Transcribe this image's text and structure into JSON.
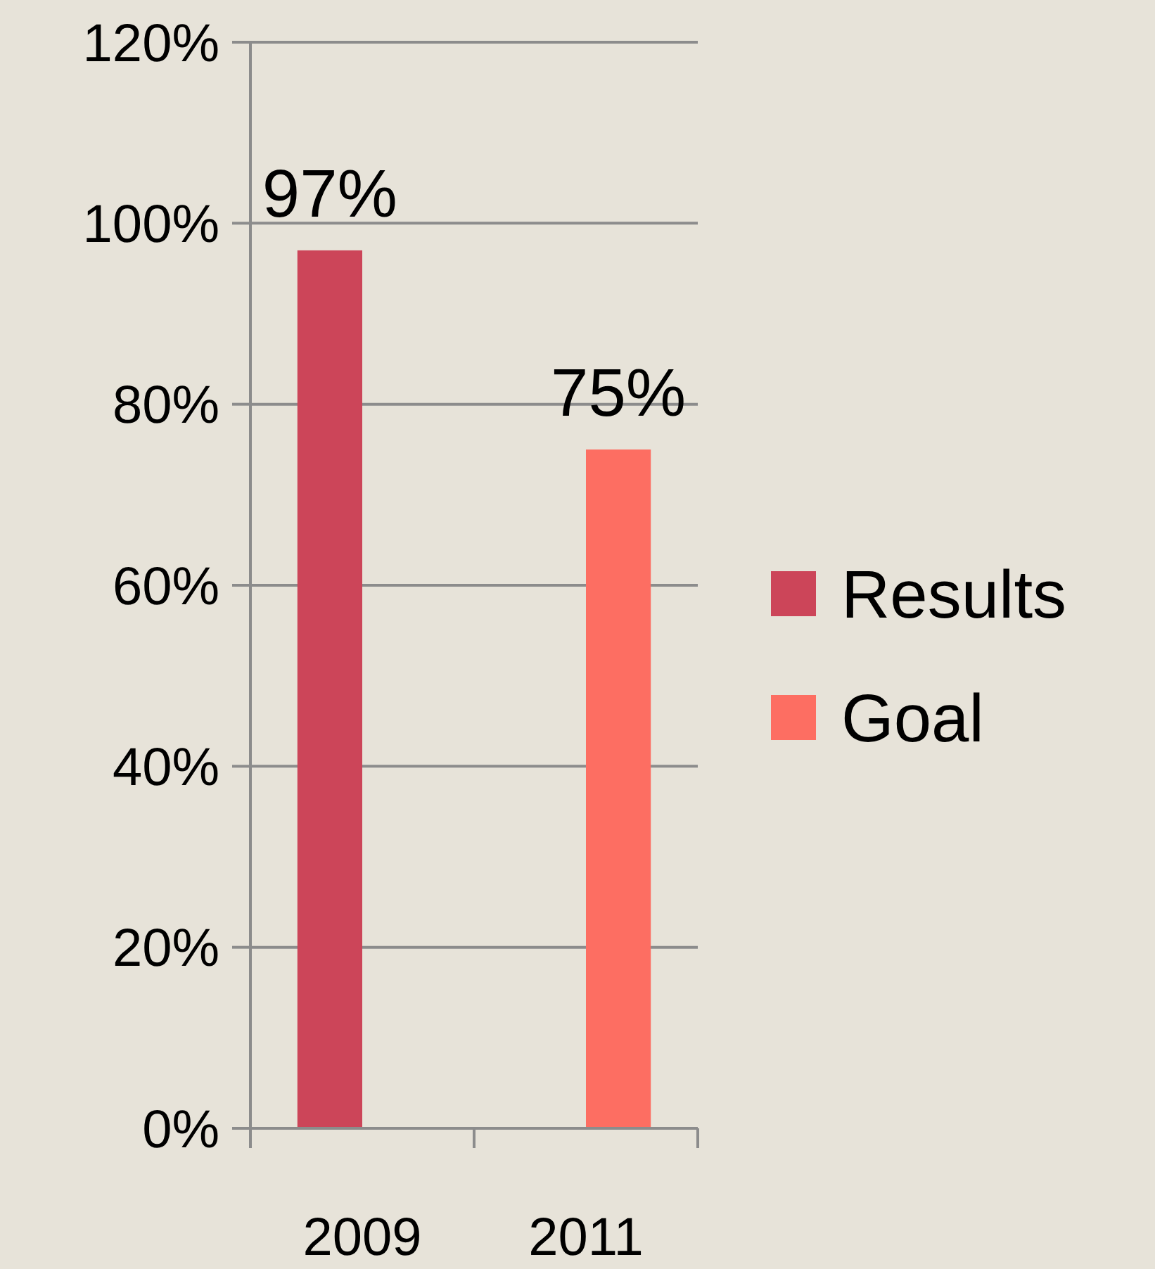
{
  "chart_data": {
    "type": "bar",
    "categories": [
      "2009",
      "2011"
    ],
    "series": [
      {
        "name": "Results",
        "color": "#cc4559",
        "values": [
          97,
          null
        ],
        "value_labels": [
          "97%",
          null
        ]
      },
      {
        "name": "Goal",
        "color": "#fd6e62",
        "values": [
          null,
          75
        ],
        "value_labels": [
          null,
          "75%"
        ]
      }
    ],
    "ylim": [
      0,
      120
    ],
    "yticks": [
      {
        "value": 0,
        "label": "0%"
      },
      {
        "value": 20,
        "label": "20%"
      },
      {
        "value": 40,
        "label": "40%"
      },
      {
        "value": 60,
        "label": "60%"
      },
      {
        "value": 80,
        "label": "80%"
      },
      {
        "value": 100,
        "label": "100%"
      },
      {
        "value": 120,
        "label": "120%"
      }
    ],
    "grid": "y",
    "legend": "right"
  }
}
